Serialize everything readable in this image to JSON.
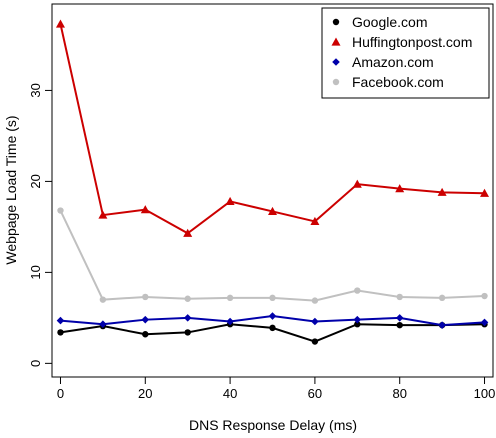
{
  "chart_data": {
    "type": "line",
    "xlabel": "DNS Response Delay (ms)",
    "ylabel": "Webpage Load Time (s)",
    "xlim": [
      -2,
      102
    ],
    "ylim": [
      -1.5,
      39.5
    ],
    "x_ticks": [
      0,
      20,
      40,
      60,
      80,
      100
    ],
    "y_ticks": [
      0,
      10,
      20,
      30
    ],
    "grid": false,
    "legend_position": "top-right",
    "x": [
      0,
      10,
      20,
      30,
      40,
      50,
      60,
      70,
      80,
      90,
      100
    ],
    "series": [
      {
        "name": "Google.com",
        "color": "#000000",
        "marker": "circle",
        "values": [
          3.4,
          4.1,
          3.2,
          3.4,
          4.3,
          3.9,
          2.4,
          4.3,
          4.2,
          4.2,
          4.3
        ]
      },
      {
        "name": "Huffingtonpost.com",
        "color": "#cc0000",
        "marker": "triangle",
        "values": [
          37.3,
          16.3,
          16.9,
          14.3,
          17.8,
          16.7,
          15.6,
          19.7,
          19.2,
          18.8,
          18.7
        ]
      },
      {
        "name": "Amazon.com",
        "color": "#0000aa",
        "marker": "diamond",
        "values": [
          4.7,
          4.3,
          4.8,
          5.0,
          4.6,
          5.2,
          4.6,
          4.8,
          5.0,
          4.2,
          4.5
        ]
      },
      {
        "name": "Facebook.com",
        "color": "#c0c0c0",
        "marker": "circle",
        "values": [
          16.8,
          7.0,
          7.3,
          7.1,
          7.2,
          7.2,
          6.9,
          8.0,
          7.3,
          7.2,
          7.4
        ]
      }
    ]
  }
}
